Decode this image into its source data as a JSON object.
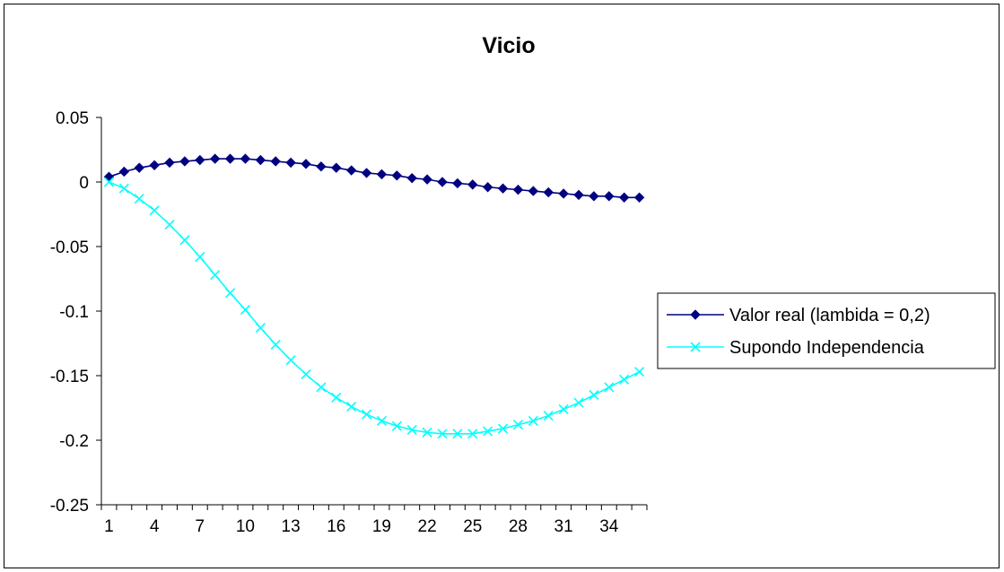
{
  "chart_data": {
    "type": "line",
    "title": "Vicio",
    "xlabel": "",
    "ylabel": "",
    "ylim": [
      -0.25,
      0.05
    ],
    "y_ticks": [
      "0.05",
      "0",
      "-0.05",
      "-0.1",
      "-0.15",
      "-0.2",
      "-0.25"
    ],
    "y_tick_values": [
      0.05,
      0,
      -0.05,
      -0.1,
      -0.15,
      -0.2,
      -0.25
    ],
    "categories": [
      1,
      2,
      3,
      4,
      5,
      6,
      7,
      8,
      9,
      10,
      11,
      12,
      13,
      14,
      15,
      16,
      17,
      18,
      19,
      20,
      21,
      22,
      23,
      24,
      25,
      26,
      27,
      28,
      29,
      30,
      31,
      32,
      33,
      34,
      35,
      36
    ],
    "x_tick_labels": [
      "1",
      "4",
      "7",
      "10",
      "13",
      "16",
      "19",
      "22",
      "25",
      "28",
      "31",
      "34"
    ],
    "grid": false,
    "legend_position": "right",
    "series": [
      {
        "name": "Valor real (lambida = 0,2)",
        "color": "#000080",
        "marker": "diamond",
        "values": [
          0.004,
          0.008,
          0.011,
          0.013,
          0.015,
          0.016,
          0.017,
          0.018,
          0.018,
          0.018,
          0.017,
          0.016,
          0.015,
          0.014,
          0.012,
          0.011,
          0.009,
          0.007,
          0.006,
          0.005,
          0.003,
          0.002,
          0.0,
          -0.001,
          -0.002,
          -0.004,
          -0.005,
          -0.006,
          -0.007,
          -0.008,
          -0.009,
          -0.01,
          -0.011,
          -0.011,
          -0.012,
          -0.012
        ]
      },
      {
        "name": "Supondo Independencia",
        "color": "#00FFFF",
        "marker": "x",
        "values": [
          0.0,
          -0.005,
          -0.013,
          -0.022,
          -0.033,
          -0.045,
          -0.058,
          -0.072,
          -0.086,
          -0.099,
          -0.113,
          -0.126,
          -0.138,
          -0.149,
          -0.159,
          -0.167,
          -0.174,
          -0.18,
          -0.185,
          -0.189,
          -0.192,
          -0.194,
          -0.195,
          -0.195,
          -0.195,
          -0.193,
          -0.191,
          -0.188,
          -0.185,
          -0.181,
          -0.176,
          -0.171,
          -0.165,
          -0.159,
          -0.153,
          -0.147
        ]
      }
    ]
  }
}
